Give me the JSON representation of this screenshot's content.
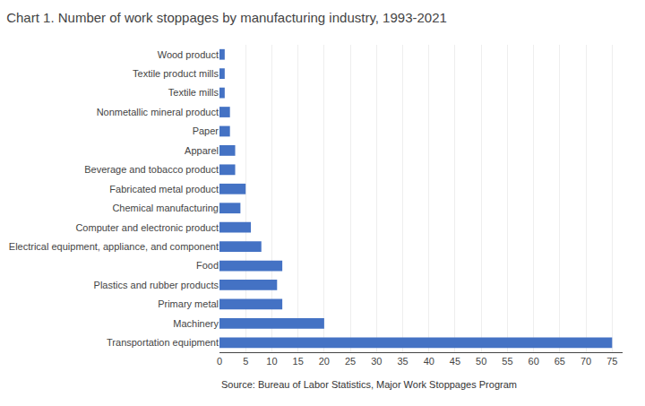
{
  "chart_data": {
    "type": "bar",
    "orientation": "horizontal",
    "title": "Chart 1. Number of work stoppages by manufacturing industry, 1993-2021",
    "annotations": [
      "Source: Bureau of Labor Statistics, Major Work Stoppages Program"
    ],
    "categories": [
      "Transportation equipment",
      "Machinery",
      "Primary metal",
      "Plastics and rubber products",
      "Food",
      "Electrical equipment, appliance, and component",
      "Computer and electronic product",
      "Chemical manufacturing",
      "Fabricated metal product",
      "Beverage and tobacco product",
      "Apparel",
      "Paper",
      "Nonmetallic mineral product",
      "Textile mills",
      "Textile product mills",
      "Wood product"
    ],
    "values": [
      75,
      20,
      12,
      11,
      12,
      8,
      6,
      4,
      5,
      3,
      3,
      2,
      2,
      1,
      1,
      1
    ],
    "color": "#4472C4",
    "xlim": [
      0,
      77
    ],
    "xticks": [
      0,
      5,
      10,
      15,
      20,
      25,
      30,
      35,
      40,
      45,
      50,
      55,
      60,
      65,
      70,
      75
    ],
    "grid": true
  }
}
